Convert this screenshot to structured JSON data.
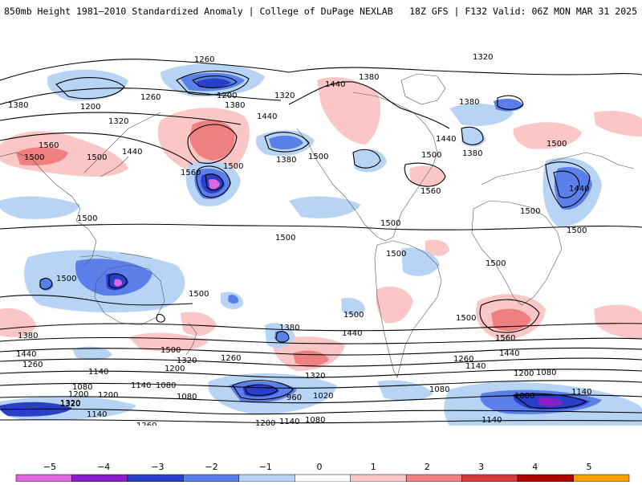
{
  "header": {
    "title": "850mb Height 1981–2010 Standardized Anomaly | College of DuPage NEXLAB",
    "valid": "18Z GFS | F132 Valid: 06Z MON MAR 31 2025"
  },
  "colorbar": {
    "ticks": [
      "−5",
      "−4",
      "−3",
      "−2",
      "−1",
      "0",
      "1",
      "2",
      "3",
      "4",
      "5"
    ],
    "colors": [
      "#e066e0",
      "#8a1fc9",
      "#2a3fc8",
      "#5a7fe8",
      "#b8d4f5",
      "#ffffff",
      "#fbc6c6",
      "#f08080",
      "#d83a3a",
      "#b00000",
      "#f5a000"
    ]
  },
  "contour_labels": [
    "1260",
    "1320",
    "1380",
    "1260",
    "1200",
    "1380",
    "1320",
    "1440",
    "1380",
    "1200",
    "1320",
    "1380",
    "1440",
    "1560",
    "1500",
    "1440",
    "1500",
    "1560",
    "1500",
    "1380",
    "1500",
    "1440",
    "1500",
    "1560",
    "1440",
    "1380",
    "1500",
    "1500",
    "1500",
    "1500",
    "1500",
    "1500",
    "1500",
    "1500",
    "1500",
    "1500",
    "1500",
    "1560",
    "1380",
    "1440",
    "1500",
    "1380",
    "1440",
    "1440",
    "1260",
    "1500",
    "1320",
    "1260",
    "1320",
    "1200",
    "1260",
    "1140",
    "1200",
    "1080",
    "1140",
    "1080",
    "1200",
    "1320",
    "1080",
    "960",
    "1020",
    "1080",
    "1140",
    "1080",
    "1140",
    "1260",
    "1200",
    "1140",
    "1080",
    "1200",
    "1080",
    "1140",
    "1140",
    "1320"
  ]
}
